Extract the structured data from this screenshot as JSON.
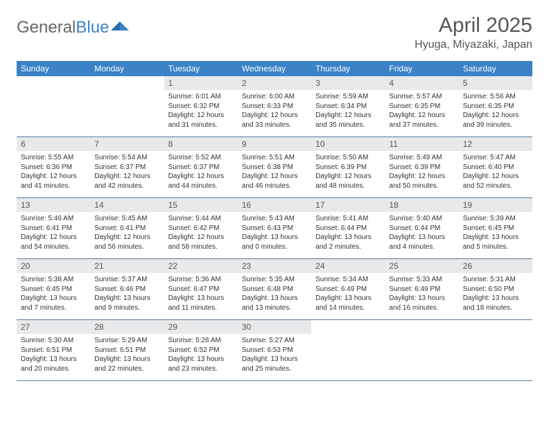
{
  "brand": {
    "part1": "General",
    "part2": "Blue"
  },
  "title": "April 2025",
  "location": "Hyuga, Miyazaki, Japan",
  "colors": {
    "header_bg": "#3b82c7",
    "daynum_bg": "#e8e9ea",
    "rule": "#5a7a9a",
    "text": "#333333",
    "muted": "#555555"
  },
  "weekdays": [
    "Sunday",
    "Monday",
    "Tuesday",
    "Wednesday",
    "Thursday",
    "Friday",
    "Saturday"
  ],
  "weeks": [
    [
      null,
      null,
      {
        "n": "1",
        "sunrise": "6:01 AM",
        "sunset": "6:32 PM",
        "dl1": "Daylight: 12 hours",
        "dl2": "and 31 minutes."
      },
      {
        "n": "2",
        "sunrise": "6:00 AM",
        "sunset": "6:33 PM",
        "dl1": "Daylight: 12 hours",
        "dl2": "and 33 minutes."
      },
      {
        "n": "3",
        "sunrise": "5:59 AM",
        "sunset": "6:34 PM",
        "dl1": "Daylight: 12 hours",
        "dl2": "and 35 minutes."
      },
      {
        "n": "4",
        "sunrise": "5:57 AM",
        "sunset": "6:35 PM",
        "dl1": "Daylight: 12 hours",
        "dl2": "and 37 minutes."
      },
      {
        "n": "5",
        "sunrise": "5:56 AM",
        "sunset": "6:35 PM",
        "dl1": "Daylight: 12 hours",
        "dl2": "and 39 minutes."
      }
    ],
    [
      {
        "n": "6",
        "sunrise": "5:55 AM",
        "sunset": "6:36 PM",
        "dl1": "Daylight: 12 hours",
        "dl2": "and 41 minutes."
      },
      {
        "n": "7",
        "sunrise": "5:54 AM",
        "sunset": "6:37 PM",
        "dl1": "Daylight: 12 hours",
        "dl2": "and 42 minutes."
      },
      {
        "n": "8",
        "sunrise": "5:52 AM",
        "sunset": "6:37 PM",
        "dl1": "Daylight: 12 hours",
        "dl2": "and 44 minutes."
      },
      {
        "n": "9",
        "sunrise": "5:51 AM",
        "sunset": "6:38 PM",
        "dl1": "Daylight: 12 hours",
        "dl2": "and 46 minutes."
      },
      {
        "n": "10",
        "sunrise": "5:50 AM",
        "sunset": "6:39 PM",
        "dl1": "Daylight: 12 hours",
        "dl2": "and 48 minutes."
      },
      {
        "n": "11",
        "sunrise": "5:49 AM",
        "sunset": "6:39 PM",
        "dl1": "Daylight: 12 hours",
        "dl2": "and 50 minutes."
      },
      {
        "n": "12",
        "sunrise": "5:47 AM",
        "sunset": "6:40 PM",
        "dl1": "Daylight: 12 hours",
        "dl2": "and 52 minutes."
      }
    ],
    [
      {
        "n": "13",
        "sunrise": "5:46 AM",
        "sunset": "6:41 PM",
        "dl1": "Daylight: 12 hours",
        "dl2": "and 54 minutes."
      },
      {
        "n": "14",
        "sunrise": "5:45 AM",
        "sunset": "6:41 PM",
        "dl1": "Daylight: 12 hours",
        "dl2": "and 56 minutes."
      },
      {
        "n": "15",
        "sunrise": "5:44 AM",
        "sunset": "6:42 PM",
        "dl1": "Daylight: 12 hours",
        "dl2": "and 58 minutes."
      },
      {
        "n": "16",
        "sunrise": "5:43 AM",
        "sunset": "6:43 PM",
        "dl1": "Daylight: 13 hours",
        "dl2": "and 0 minutes."
      },
      {
        "n": "17",
        "sunrise": "5:41 AM",
        "sunset": "6:44 PM",
        "dl1": "Daylight: 13 hours",
        "dl2": "and 2 minutes."
      },
      {
        "n": "18",
        "sunrise": "5:40 AM",
        "sunset": "6:44 PM",
        "dl1": "Daylight: 13 hours",
        "dl2": "and 4 minutes."
      },
      {
        "n": "19",
        "sunrise": "5:39 AM",
        "sunset": "6:45 PM",
        "dl1": "Daylight: 13 hours",
        "dl2": "and 5 minutes."
      }
    ],
    [
      {
        "n": "20",
        "sunrise": "5:38 AM",
        "sunset": "6:45 PM",
        "dl1": "Daylight: 13 hours",
        "dl2": "and 7 minutes."
      },
      {
        "n": "21",
        "sunrise": "5:37 AM",
        "sunset": "6:46 PM",
        "dl1": "Daylight: 13 hours",
        "dl2": "and 9 minutes."
      },
      {
        "n": "22",
        "sunrise": "5:36 AM",
        "sunset": "6:47 PM",
        "dl1": "Daylight: 13 hours",
        "dl2": "and 11 minutes."
      },
      {
        "n": "23",
        "sunrise": "5:35 AM",
        "sunset": "6:48 PM",
        "dl1": "Daylight: 13 hours",
        "dl2": "and 13 minutes."
      },
      {
        "n": "24",
        "sunrise": "5:34 AM",
        "sunset": "6:49 PM",
        "dl1": "Daylight: 13 hours",
        "dl2": "and 14 minutes."
      },
      {
        "n": "25",
        "sunrise": "5:33 AM",
        "sunset": "6:49 PM",
        "dl1": "Daylight: 13 hours",
        "dl2": "and 16 minutes."
      },
      {
        "n": "26",
        "sunrise": "5:31 AM",
        "sunset": "6:50 PM",
        "dl1": "Daylight: 13 hours",
        "dl2": "and 18 minutes."
      }
    ],
    [
      {
        "n": "27",
        "sunrise": "5:30 AM",
        "sunset": "6:51 PM",
        "dl1": "Daylight: 13 hours",
        "dl2": "and 20 minutes."
      },
      {
        "n": "28",
        "sunrise": "5:29 AM",
        "sunset": "6:51 PM",
        "dl1": "Daylight: 13 hours",
        "dl2": "and 22 minutes."
      },
      {
        "n": "29",
        "sunrise": "5:28 AM",
        "sunset": "6:52 PM",
        "dl1": "Daylight: 13 hours",
        "dl2": "and 23 minutes."
      },
      {
        "n": "30",
        "sunrise": "5:27 AM",
        "sunset": "6:53 PM",
        "dl1": "Daylight: 13 hours",
        "dl2": "and 25 minutes."
      },
      null,
      null,
      null
    ]
  ],
  "labels": {
    "sunrise": "Sunrise:",
    "sunset": "Sunset:"
  }
}
